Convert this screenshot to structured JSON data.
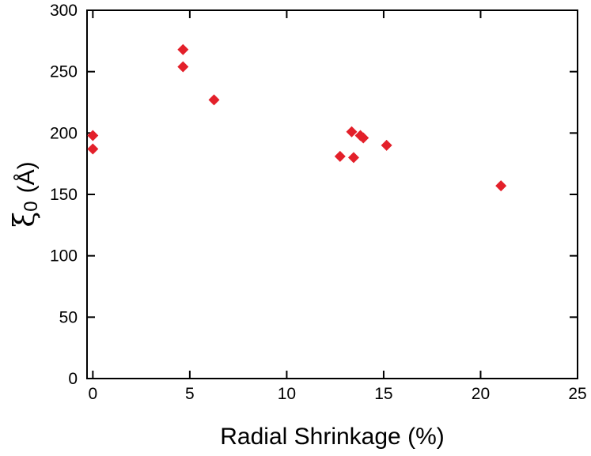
{
  "chart_data": {
    "type": "scatter",
    "title": "",
    "xlabel": "Radial Shrinkage (%)",
    "ylabel": {
      "symbol": "ξ",
      "subscript": "0",
      "unit": "(Å)"
    },
    "xlim": [
      -0.3,
      25
    ],
    "ylim": [
      0,
      300
    ],
    "xticks": [
      0,
      5,
      10,
      15,
      20,
      25
    ],
    "yticks": [
      0,
      50,
      100,
      150,
      200,
      250,
      300
    ],
    "grid": false,
    "legend": "none",
    "marker": "diamond",
    "marker_color": "#e3202a",
    "series": [
      {
        "x": [
          0.0,
          0.0,
          4.65,
          4.65,
          6.25,
          12.75,
          13.35,
          13.45,
          13.8,
          13.95,
          15.15,
          21.05
        ],
        "y": [
          198,
          187,
          268,
          254,
          227,
          181,
          201,
          180,
          198,
          196,
          190,
          157
        ]
      }
    ]
  }
}
